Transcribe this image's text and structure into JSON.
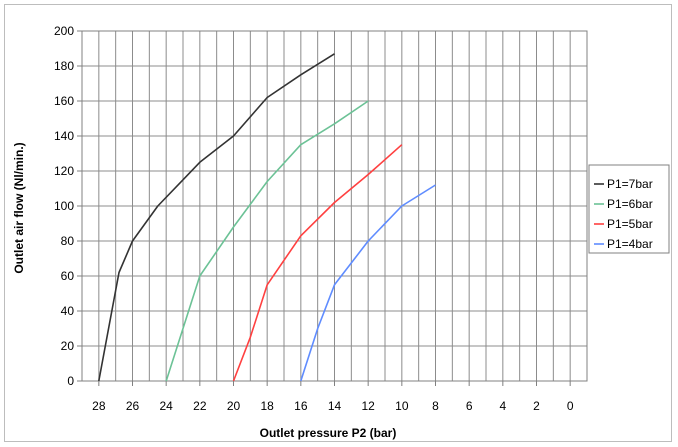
{
  "chart_data": {
    "type": "line",
    "title": "",
    "xlabel": "Outlet pressure P2 (bar)",
    "ylabel": "Outlet air flow (Nl/min.)",
    "xlim": [
      29,
      -1
    ],
    "ylim": [
      0,
      200
    ],
    "x_reversed": true,
    "x_ticks": [
      28,
      26,
      24,
      22,
      20,
      18,
      16,
      14,
      12,
      10,
      8,
      6,
      4,
      2,
      0
    ],
    "y_ticks": [
      0,
      20,
      40,
      60,
      80,
      100,
      120,
      140,
      160,
      180,
      200
    ],
    "grid": true,
    "legend_position": "right",
    "series": [
      {
        "name": "P1=7bar",
        "color": "#333333",
        "points": [
          [
            28,
            0
          ],
          [
            26.8,
            62
          ],
          [
            26,
            80
          ],
          [
            24.5,
            100
          ],
          [
            23,
            115
          ],
          [
            22,
            125
          ],
          [
            20,
            140
          ],
          [
            18,
            162
          ],
          [
            16,
            175
          ],
          [
            14,
            187
          ]
        ]
      },
      {
        "name": "P1=6bar",
        "color": "#6cc296",
        "points": [
          [
            24,
            0
          ],
          [
            23,
            30
          ],
          [
            22,
            60
          ],
          [
            20,
            88
          ],
          [
            18,
            114
          ],
          [
            16,
            135
          ],
          [
            14,
            147
          ],
          [
            12,
            160
          ]
        ]
      },
      {
        "name": "P1=5bar",
        "color": "#ff4040",
        "points": [
          [
            20,
            0
          ],
          [
            19,
            25
          ],
          [
            18,
            55
          ],
          [
            16,
            83
          ],
          [
            14,
            102
          ],
          [
            12,
            118
          ],
          [
            10,
            135
          ]
        ]
      },
      {
        "name": "P1=4bar",
        "color": "#5f8cff",
        "points": [
          [
            16,
            0
          ],
          [
            15,
            30
          ],
          [
            14,
            55
          ],
          [
            12,
            80
          ],
          [
            10,
            100
          ],
          [
            8,
            112
          ]
        ]
      }
    ]
  }
}
